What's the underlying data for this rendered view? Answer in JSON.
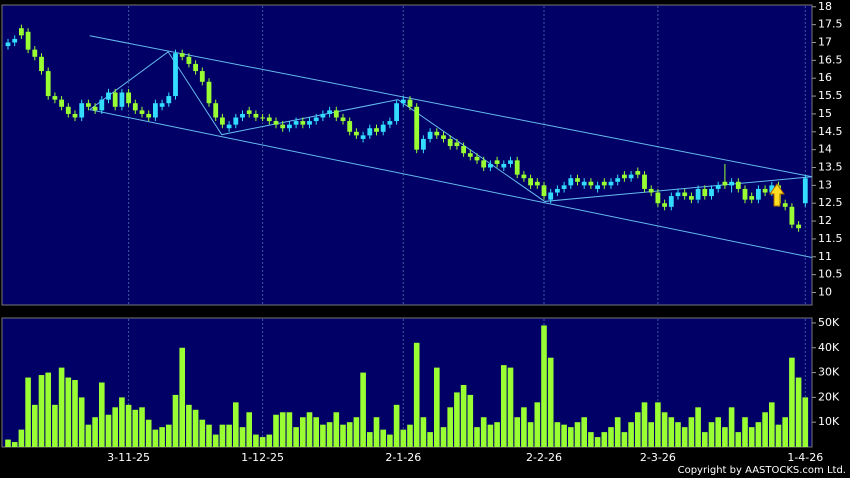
{
  "copyright": "Copyright by AASTOCKS.com Ltd.",
  "chart_data": [
    {
      "type": "candlestick",
      "open": [
        16.9,
        17.0,
        17.4,
        17.3,
        16.8,
        16.6,
        16.2,
        15.5,
        15.4,
        15.2,
        15.0,
        14.9,
        15.3,
        15.2,
        15.1,
        15.4,
        15.6,
        15.2,
        15.6,
        15.3,
        15.1,
        15.0,
        14.9,
        15.2,
        15.3,
        15.5,
        16.7,
        16.6,
        16.4,
        16.2,
        15.9,
        15.3,
        14.9,
        14.6,
        14.7,
        14.9,
        15.1,
        15.0,
        14.9,
        14.9,
        14.8,
        14.7,
        14.6,
        14.7,
        14.8,
        14.7,
        14.8,
        14.9,
        15.0,
        15.1,
        14.9,
        14.8,
        14.5,
        14.3,
        14.4,
        14.6,
        14.5,
        14.7,
        14.8,
        15.3,
        15.4,
        15.2,
        14.0,
        14.3,
        14.5,
        14.4,
        14.3,
        14.2,
        14.1,
        13.9,
        13.8,
        13.7,
        13.5,
        13.7,
        13.5,
        13.6,
        13.7,
        13.3,
        13.2,
        13.1,
        13.0,
        12.6,
        12.8,
        12.9,
        13.0,
        13.2,
        13.0,
        13.1,
        12.9,
        13.1,
        13.0,
        13.1,
        13.3,
        13.2,
        13.4,
        13.3,
        12.9,
        12.8,
        12.5,
        12.4,
        12.7,
        12.8,
        12.7,
        12.6,
        12.9,
        12.7,
        12.9,
        13.1,
        13.0,
        13.1,
        12.9,
        12.7,
        12.6,
        12.9,
        12.8,
        13.0,
        12.5,
        12.4,
        11.9,
        12.5
      ],
      "high": [
        17.1,
        17.2,
        17.5,
        17.4,
        16.9,
        16.7,
        16.3,
        15.6,
        15.5,
        15.3,
        15.1,
        15.4,
        15.4,
        15.3,
        15.5,
        15.7,
        15.7,
        15.7,
        15.7,
        15.4,
        15.2,
        15.1,
        15.4,
        15.4,
        15.6,
        16.8,
        16.8,
        16.7,
        16.5,
        16.3,
        16.0,
        15.4,
        15.0,
        14.8,
        15.0,
        15.1,
        15.2,
        15.1,
        15.0,
        15.0,
        14.9,
        14.8,
        14.8,
        14.9,
        14.9,
        14.9,
        15.0,
        15.1,
        15.2,
        15.2,
        15.0,
        14.9,
        14.6,
        14.5,
        14.7,
        14.7,
        14.8,
        14.9,
        15.4,
        15.5,
        15.5,
        15.3,
        14.4,
        14.6,
        14.6,
        14.5,
        14.4,
        14.3,
        14.2,
        14.0,
        13.9,
        13.8,
        13.7,
        13.8,
        13.7,
        13.8,
        13.8,
        13.4,
        13.3,
        13.2,
        13.1,
        12.9,
        13.0,
        13.1,
        13.3,
        13.3,
        13.2,
        13.2,
        13.1,
        13.2,
        13.2,
        13.3,
        13.4,
        13.4,
        13.5,
        13.4,
        13.0,
        12.9,
        12.6,
        12.8,
        12.9,
        12.9,
        12.8,
        13.0,
        13.0,
        13.0,
        13.1,
        13.6,
        13.2,
        13.2,
        13.0,
        12.8,
        13.0,
        13.0,
        13.1,
        13.1,
        12.6,
        12.5,
        12.0,
        13.3
      ],
      "low": [
        16.8,
        16.9,
        17.1,
        16.7,
        16.5,
        16.1,
        15.4,
        15.3,
        15.1,
        14.9,
        14.8,
        14.8,
        15.1,
        15.0,
        15.0,
        15.3,
        15.1,
        15.1,
        15.2,
        15.0,
        14.9,
        14.8,
        14.8,
        15.1,
        15.2,
        15.4,
        16.5,
        16.3,
        16.1,
        15.8,
        15.2,
        14.8,
        14.6,
        14.5,
        14.6,
        14.8,
        14.9,
        14.8,
        14.8,
        14.7,
        14.6,
        14.5,
        14.5,
        14.6,
        14.6,
        14.6,
        14.7,
        14.8,
        14.9,
        14.8,
        14.7,
        14.4,
        14.3,
        14.2,
        14.3,
        14.4,
        14.4,
        14.6,
        14.7,
        15.2,
        15.1,
        13.9,
        13.9,
        14.2,
        14.3,
        14.2,
        14.0,
        14.0,
        13.8,
        13.7,
        13.6,
        13.4,
        13.4,
        13.5,
        13.4,
        13.5,
        13.2,
        13.1,
        12.9,
        12.9,
        12.6,
        12.5,
        12.7,
        12.8,
        12.9,
        13.0,
        12.9,
        12.9,
        12.8,
        12.9,
        12.9,
        13.0,
        13.1,
        13.1,
        13.2,
        12.8,
        12.7,
        12.4,
        12.3,
        12.3,
        12.6,
        12.6,
        12.5,
        12.5,
        12.6,
        12.6,
        12.8,
        12.9,
        12.8,
        12.8,
        12.5,
        12.5,
        12.5,
        12.7,
        12.7,
        12.4,
        12.3,
        11.8,
        11.7,
        12.4
      ],
      "close": [
        17.0,
        17.1,
        17.2,
        16.8,
        16.6,
        16.2,
        15.5,
        15.4,
        15.2,
        15.0,
        14.9,
        15.3,
        15.2,
        15.1,
        15.4,
        15.6,
        15.2,
        15.6,
        15.3,
        15.1,
        15.0,
        14.9,
        15.3,
        15.3,
        15.5,
        16.7,
        16.6,
        16.4,
        16.2,
        15.9,
        15.3,
        14.9,
        14.7,
        14.7,
        14.9,
        15.0,
        15.0,
        14.9,
        14.9,
        14.8,
        14.7,
        14.6,
        14.7,
        14.8,
        14.7,
        14.8,
        14.9,
        15.0,
        15.1,
        14.9,
        14.8,
        14.5,
        14.4,
        14.4,
        14.6,
        14.5,
        14.7,
        14.8,
        15.3,
        15.4,
        15.2,
        14.0,
        14.3,
        14.5,
        14.4,
        14.3,
        14.1,
        14.1,
        13.9,
        13.8,
        13.7,
        13.5,
        13.6,
        13.6,
        13.6,
        13.7,
        13.3,
        13.2,
        13.0,
        13.0,
        12.7,
        12.8,
        12.9,
        13.0,
        13.2,
        13.1,
        13.1,
        13.0,
        13.0,
        13.0,
        13.1,
        13.2,
        13.2,
        13.3,
        13.3,
        12.9,
        12.8,
        12.5,
        12.4,
        12.7,
        12.8,
        12.7,
        12.6,
        12.9,
        12.7,
        12.9,
        13.0,
        13.0,
        13.1,
        12.9,
        12.6,
        12.6,
        12.9,
        12.8,
        13.0,
        12.5,
        12.4,
        11.9,
        11.8,
        13.2
      ],
      "up_color": "#33ddff",
      "down_color": "#99ff33",
      "ylim": [
        9.65,
        18.05
      ],
      "yticks": [
        10,
        10.5,
        11,
        11.5,
        12,
        12.5,
        13,
        13.5,
        14,
        14.5,
        15,
        15.5,
        16,
        16.5,
        17,
        17.5,
        18
      ],
      "trend_color": "#66bbee",
      "trend_lines": [
        {
          "x": [
            12.2,
            120
          ],
          "y": [
            17.19,
            13.24
          ]
        },
        {
          "x": [
            12.2,
            120
          ],
          "y": [
            15.12,
            10.98
          ]
        },
        {
          "x": [
            12.2,
            23.9,
            31.9,
            58.2,
            80.1,
            120
          ],
          "y": [
            15.12,
            16.74,
            14.42,
            15.4,
            12.55,
            13.24
          ]
        }
      ]
    },
    {
      "type": "bar",
      "categories": [
        null,
        null,
        null,
        null,
        null,
        null,
        null,
        null,
        null,
        null,
        null,
        null,
        null,
        null,
        null,
        null,
        null,
        null,
        "3-11-25",
        null,
        null,
        null,
        null,
        null,
        null,
        null,
        null,
        null,
        null,
        null,
        null,
        null,
        null,
        null,
        null,
        null,
        null,
        null,
        "1-12-25",
        null,
        null,
        null,
        null,
        null,
        null,
        null,
        null,
        null,
        null,
        null,
        null,
        null,
        null,
        null,
        null,
        null,
        null,
        null,
        null,
        "2-1-26",
        null,
        null,
        null,
        null,
        null,
        null,
        null,
        null,
        null,
        null,
        null,
        null,
        null,
        null,
        null,
        null,
        null,
        null,
        null,
        null,
        "2-2-26",
        null,
        null,
        null,
        null,
        null,
        null,
        null,
        null,
        null,
        null,
        null,
        null,
        null,
        null,
        null,
        null,
        "2-3-26",
        null,
        null,
        null,
        null,
        null,
        null,
        null,
        null,
        null,
        null,
        null,
        null,
        null,
        null,
        null,
        null,
        null,
        null,
        null,
        null,
        null,
        "1-4-26"
      ],
      "values": [
        3000,
        2000,
        7000,
        28000,
        17000,
        29000,
        30000,
        17000,
        32000,
        28000,
        27000,
        20000,
        9000,
        12000,
        26000,
        13000,
        16000,
        20000,
        17000,
        15000,
        16000,
        11000,
        7000,
        8000,
        9000,
        21000,
        40000,
        17000,
        15000,
        11000,
        9000,
        5000,
        9000,
        9000,
        18000,
        8000,
        14000,
        5000,
        4000,
        5000,
        13000,
        14000,
        14000,
        8000,
        12000,
        14000,
        12000,
        9000,
        10000,
        14000,
        9000,
        10000,
        12000,
        30000,
        6000,
        12000,
        7000,
        5000,
        17000,
        7000,
        9000,
        42000,
        12000,
        6000,
        32000,
        8000,
        16000,
        22000,
        25000,
        21000,
        8000,
        12000,
        9000,
        10000,
        33000,
        32000,
        12000,
        16000,
        10000,
        18000,
        49000,
        36000,
        10000,
        9000,
        8000,
        10000,
        12000,
        6000,
        4000,
        6000,
        8000,
        12000,
        6000,
        10000,
        14000,
        18000,
        10000,
        18000,
        14000,
        12000,
        10000,
        8000,
        12000,
        16000,
        6000,
        10000,
        12000,
        8000,
        16000,
        6000,
        12000,
        8000,
        10000,
        14000,
        18000,
        9000,
        12000,
        36000,
        28000,
        20000
      ],
      "color": "#99ff33",
      "ylim": [
        0,
        52000
      ],
      "yticks": [
        {
          "value": 10000,
          "label": "10K"
        },
        {
          "value": 20000,
          "label": "20K"
        },
        {
          "value": 30000,
          "label": "30K"
        },
        {
          "value": 40000,
          "label": "40K"
        },
        {
          "value": 50000,
          "label": "50K"
        }
      ]
    }
  ]
}
